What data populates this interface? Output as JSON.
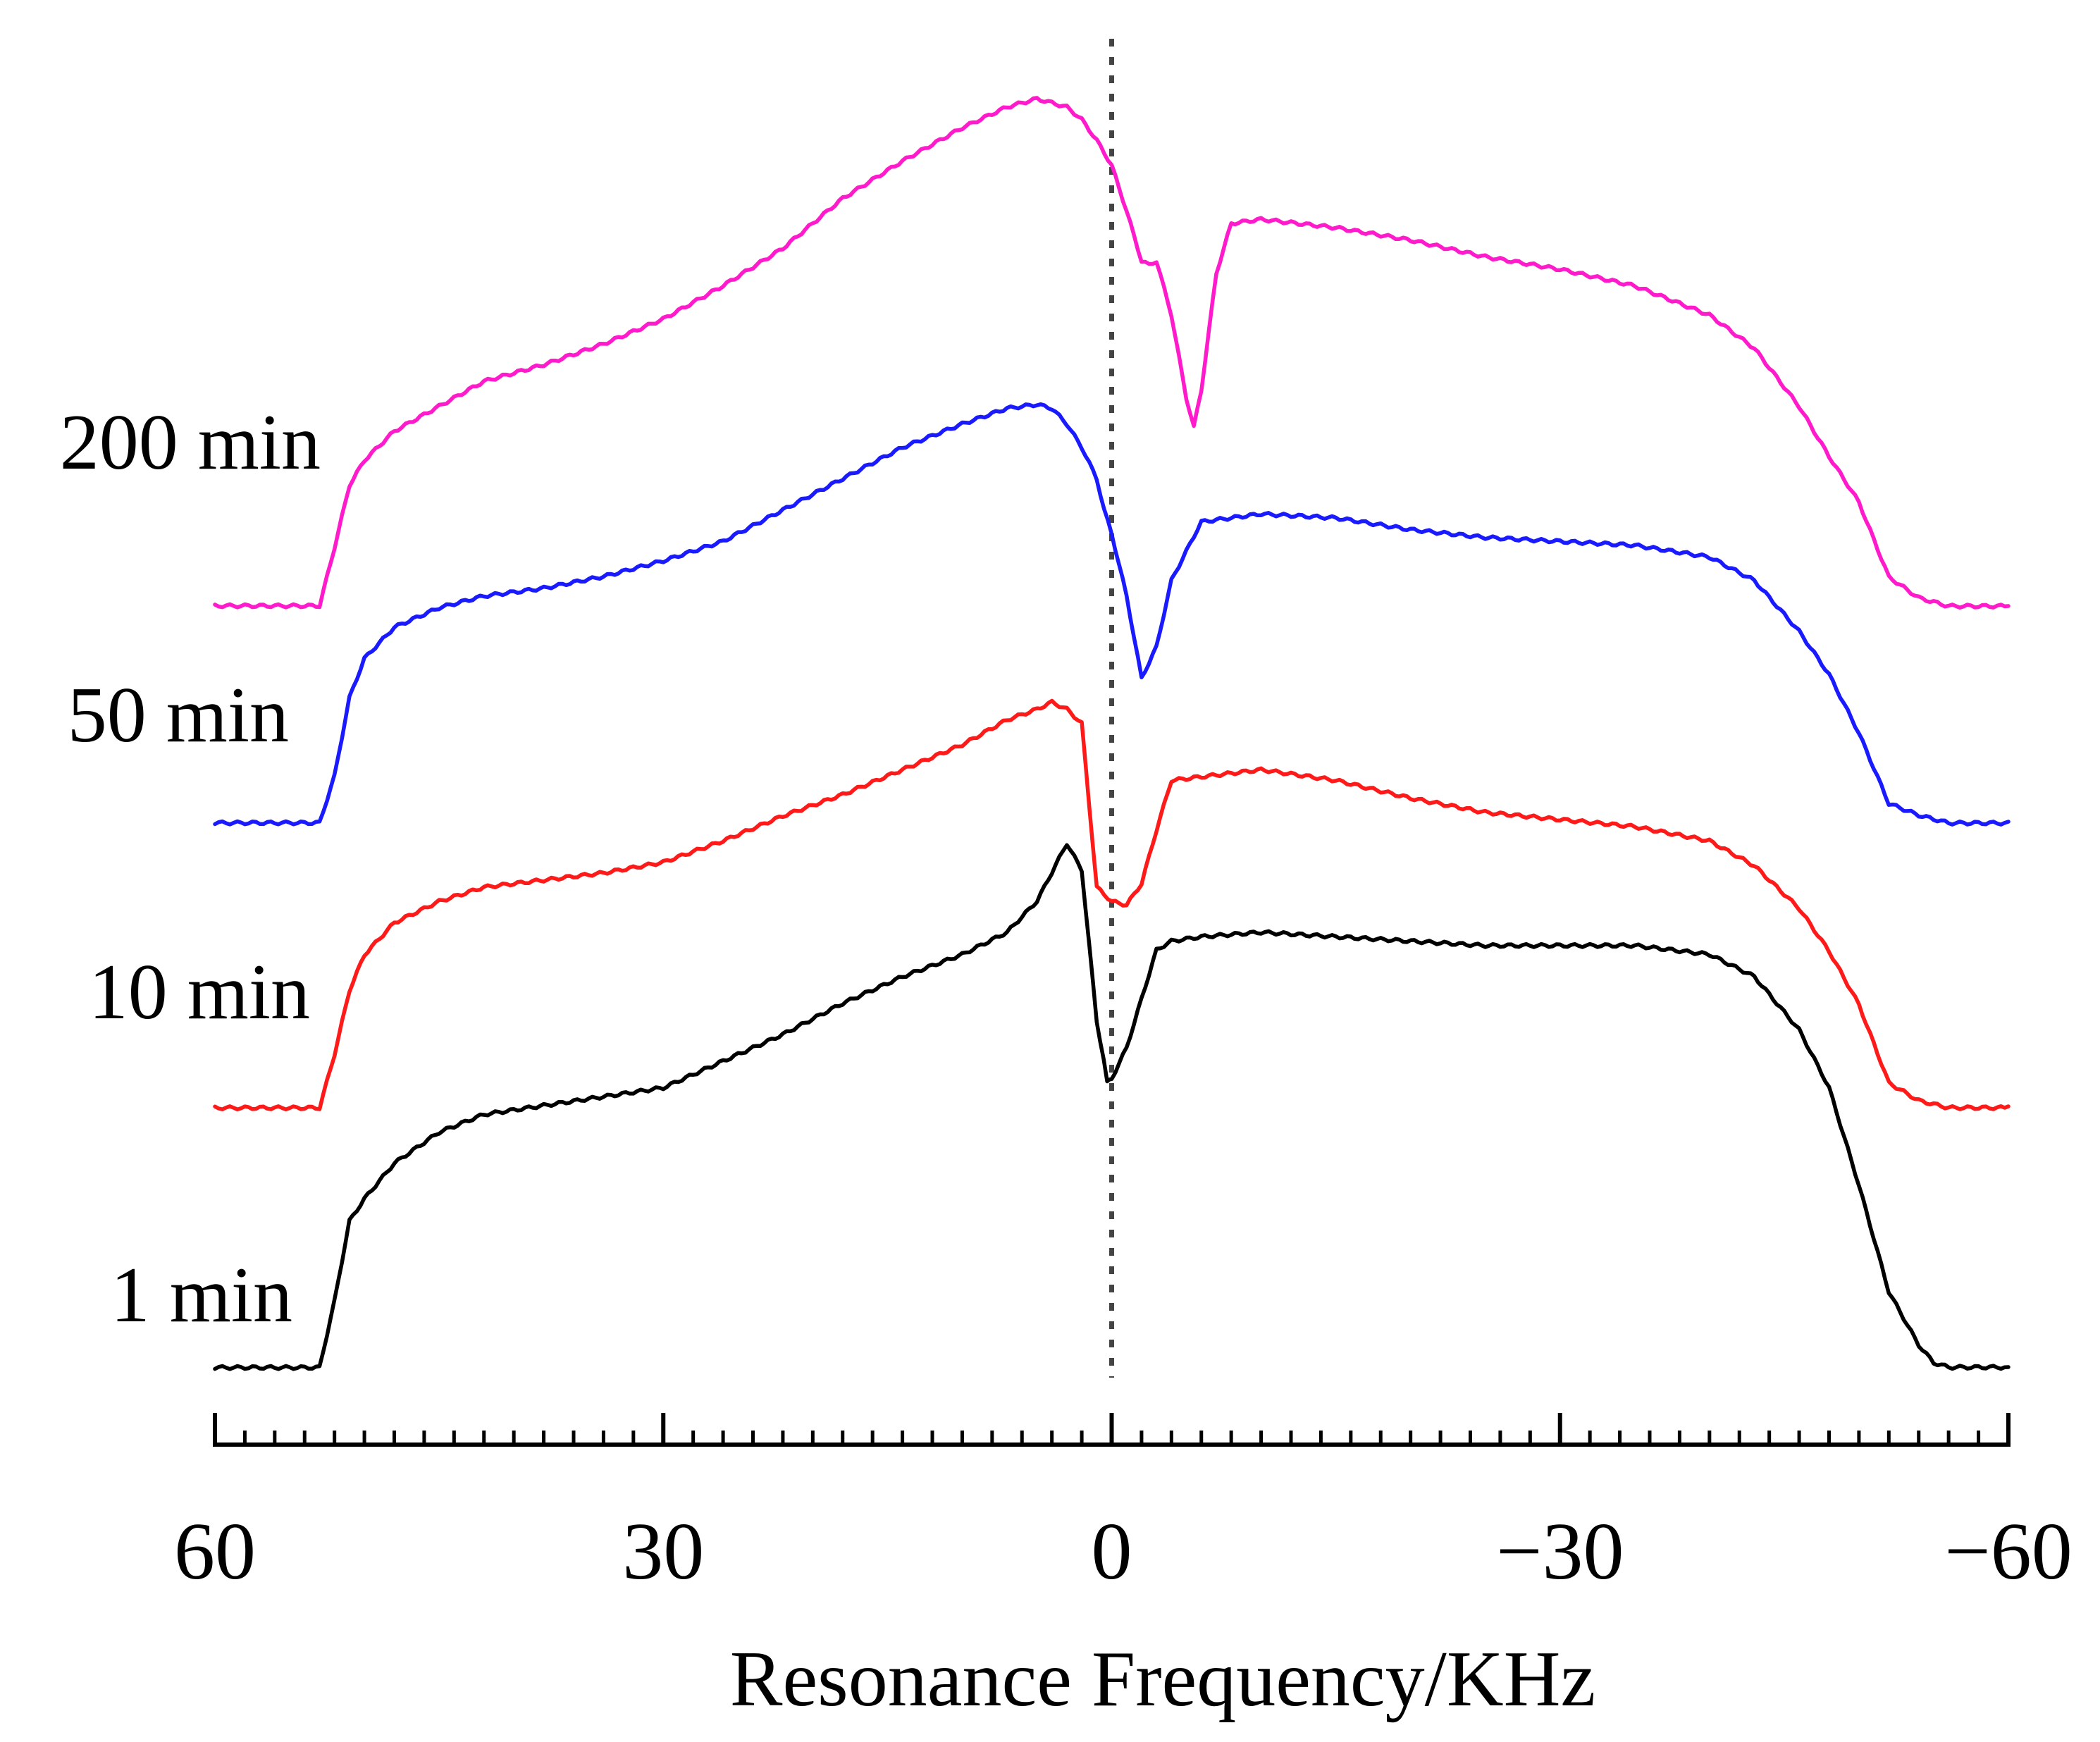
{
  "chart_data": {
    "type": "line",
    "title": "",
    "xlabel": "Resonance Frequency/KHz",
    "ylabel": "",
    "xlim": [
      60,
      -60
    ],
    "x_reversed": true,
    "grid": false,
    "x_tick_labels": [
      "60",
      "30",
      "0",
      "−30",
      "−60"
    ],
    "x_tick_values": [
      60,
      30,
      0,
      -30,
      -60
    ],
    "x_minor_tick_step": 2,
    "reference_line": {
      "x": 0,
      "style": "dotted",
      "color": "#444444"
    },
    "series_note": "Stacked spectra, arbitrary intensity units (baseline = 0, peak ~1). Values read off the figure.",
    "series": [
      {
        "name": "1 min",
        "label": "1 min",
        "color": "#000000",
        "x": [
          60,
          56,
          53,
          52,
          51,
          50,
          48,
          45,
          42,
          38,
          34,
          30,
          26,
          22,
          18,
          14,
          10,
          7,
          5,
          3,
          2,
          1,
          0.3,
          0,
          -1,
          -2,
          -3,
          -4,
          -6,
          -10,
          -15,
          -20,
          -25,
          -30,
          -35,
          -40,
          -43,
          -46,
          -48,
          -50,
          -52,
          -54,
          -55,
          -56,
          -58,
          -60
        ],
        "values": [
          0,
          0,
          0,
          0.15,
          0.33,
          0.38,
          0.46,
          0.53,
          0.57,
          0.59,
          0.61,
          0.63,
          0.69,
          0.75,
          0.82,
          0.88,
          0.93,
          0.98,
          1.05,
          1.18,
          1.12,
          0.78,
          0.64,
          0.65,
          0.72,
          0.83,
          0.94,
          0.96,
          0.97,
          0.98,
          0.97,
          0.96,
          0.95,
          0.95,
          0.95,
          0.93,
          0.88,
          0.76,
          0.63,
          0.41,
          0.17,
          0.05,
          0.01,
          0,
          0,
          0
        ]
      },
      {
        "name": "10 min",
        "label": "10 min",
        "color": "#ff1a1a",
        "x": [
          60,
          56,
          53,
          52,
          51,
          50,
          48,
          45,
          42,
          38,
          34,
          30,
          26,
          22,
          18,
          14,
          10,
          7,
          5,
          4,
          3,
          2,
          1,
          0.5,
          0,
          -1,
          -2,
          -3,
          -4,
          -6,
          -10,
          -15,
          -20,
          -25,
          -30,
          -35,
          -40,
          -43,
          -46,
          -48,
          -50,
          -52,
          -54,
          -55,
          -56,
          -58,
          -60
        ],
        "values": [
          0,
          0,
          0,
          0.15,
          0.33,
          0.43,
          0.52,
          0.58,
          0.62,
          0.64,
          0.66,
          0.69,
          0.75,
          0.82,
          0.88,
          0.95,
          1.02,
          1.09,
          1.12,
          1.14,
          1.12,
          1.08,
          0.62,
          0.6,
          0.58,
          0.57,
          0.63,
          0.78,
          0.92,
          0.93,
          0.95,
          0.92,
          0.87,
          0.83,
          0.81,
          0.79,
          0.75,
          0.68,
          0.56,
          0.44,
          0.29,
          0.07,
          0.02,
          0.01,
          0,
          0,
          0
        ]
      },
      {
        "name": "50 min",
        "label": "50 min",
        "color": "#1a1aff",
        "x": [
          60,
          56,
          53,
          52,
          51,
          50,
          48,
          45,
          42,
          38,
          34,
          30,
          26,
          22,
          18,
          14,
          10,
          7,
          5,
          4,
          3,
          2,
          1,
          0.5,
          0,
          -1,
          -2,
          -3,
          -4,
          -6,
          -10,
          -15,
          -20,
          -25,
          -30,
          -35,
          -40,
          -43,
          -46,
          -48,
          -50,
          -52,
          -54,
          -55,
          -56,
          -58,
          -60
        ],
        "values": [
          0,
          0,
          0,
          0.12,
          0.32,
          0.42,
          0.5,
          0.55,
          0.58,
          0.6,
          0.63,
          0.67,
          0.72,
          0.8,
          0.88,
          0.96,
          1.02,
          1.06,
          1.07,
          1.06,
          1.02,
          0.96,
          0.88,
          0.8,
          0.74,
          0.58,
          0.37,
          0.45,
          0.62,
          0.77,
          0.79,
          0.78,
          0.75,
          0.73,
          0.72,
          0.71,
          0.68,
          0.62,
          0.49,
          0.38,
          0.23,
          0.05,
          0.02,
          0.01,
          0,
          0,
          0
        ]
      },
      {
        "name": "200 min",
        "label": "200 min",
        "color": "#ff1acc",
        "x": [
          60,
          56,
          53,
          52,
          51,
          50,
          48,
          45,
          42,
          38,
          34,
          30,
          26,
          22,
          18,
          14,
          10,
          7,
          5,
          4,
          3,
          2,
          1,
          0.5,
          0,
          -1,
          -2,
          -2.5,
          -3,
          -4,
          -5,
          -5.5,
          -6,
          -7,
          -8,
          -10,
          -15,
          -20,
          -25,
          -30,
          -35,
          -40,
          -43,
          -46,
          -48,
          -50,
          -52,
          -54,
          -55,
          -56,
          -58,
          -60
        ],
        "values": [
          0,
          0,
          0,
          0.14,
          0.29,
          0.35,
          0.42,
          0.48,
          0.54,
          0.58,
          0.63,
          0.69,
          0.77,
          0.86,
          0.98,
          1.07,
          1.15,
          1.2,
          1.22,
          1.21,
          1.2,
          1.17,
          1.12,
          1.09,
          1.06,
          0.95,
          0.83,
          0.82,
          0.83,
          0.7,
          0.5,
          0.43,
          0.52,
          0.8,
          0.92,
          0.93,
          0.91,
          0.88,
          0.84,
          0.81,
          0.77,
          0.7,
          0.62,
          0.48,
          0.36,
          0.25,
          0.07,
          0.02,
          0.01,
          0,
          0,
          0
        ]
      }
    ]
  }
}
